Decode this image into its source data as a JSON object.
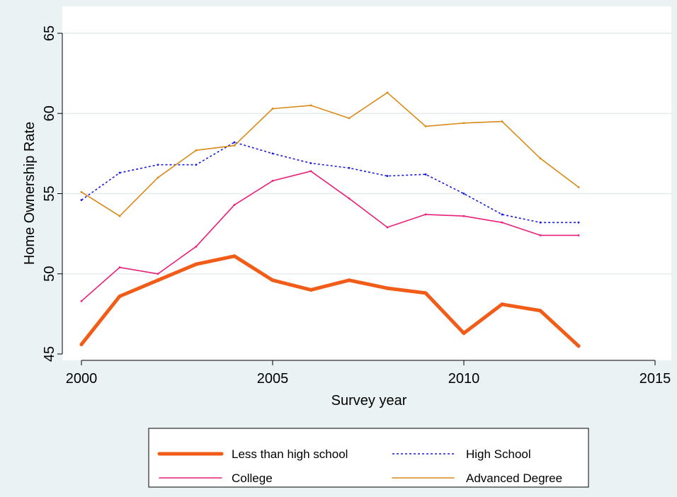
{
  "chart_data": {
    "type": "line",
    "xlabel": "Survey year",
    "ylabel": "Home Ownership Rate",
    "xlim": [
      2000,
      2015
    ],
    "ylim": [
      45,
      65
    ],
    "xticks": [
      2000,
      2005,
      2010,
      2015
    ],
    "yticks": [
      45,
      50,
      55,
      60,
      65
    ],
    "grid": true,
    "legend_position": "bottom",
    "x": [
      2000,
      2001,
      2002,
      2003,
      2004,
      2005,
      2006,
      2007,
      2008,
      2009,
      2010,
      2011,
      2012,
      2013
    ],
    "series": [
      {
        "name": "Less than high school",
        "color": "#f25c19",
        "style": "thick",
        "values": [
          45.6,
          48.6,
          49.6,
          50.6,
          51.1,
          49.6,
          49.0,
          49.6,
          49.1,
          48.8,
          46.3,
          48.1,
          47.7,
          45.5
        ]
      },
      {
        "name": "High School",
        "color": "#1a1ad8",
        "style": "dotted",
        "values": [
          54.6,
          56.3,
          56.8,
          56.8,
          58.2,
          57.5,
          56.9,
          56.6,
          56.1,
          56.2,
          55.0,
          53.7,
          53.2,
          53.2
        ]
      },
      {
        "name": "College",
        "color": "#e8207a",
        "style": "solid",
        "values": [
          48.3,
          50.4,
          50.0,
          51.7,
          54.3,
          55.8,
          56.4,
          54.7,
          52.9,
          53.7,
          53.6,
          53.2,
          52.4,
          52.4
        ]
      },
      {
        "name": "Advanced Degree",
        "color": "#d98a19",
        "style": "solid",
        "values": [
          55.1,
          53.6,
          56.0,
          57.7,
          58.0,
          60.3,
          60.5,
          59.7,
          61.3,
          59.2,
          59.4,
          59.5,
          57.2,
          55.4
        ]
      }
    ]
  }
}
